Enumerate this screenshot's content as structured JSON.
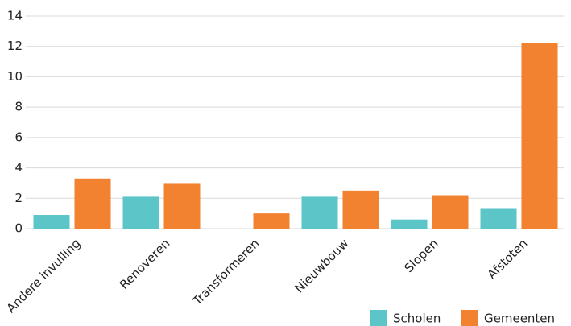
{
  "chart_data": {
    "type": "bar",
    "categories": [
      "Andere invulling",
      "Renoveren",
      "Transformeren",
      "Nieuwbouw",
      "Slopen",
      "Afstoten"
    ],
    "series": [
      {
        "name": "Scholen",
        "color": "#5bc5c8",
        "values": [
          0.9,
          2.1,
          0,
          2.1,
          0.6,
          1.3
        ]
      },
      {
        "name": "Gemeenten",
        "color": "#f28130",
        "values": [
          3.3,
          3.0,
          1.0,
          2.5,
          2.2,
          12.2
        ]
      }
    ],
    "ylim": [
      0,
      14
    ],
    "yticks": [
      0,
      2,
      4,
      6,
      8,
      10,
      12,
      14
    ],
    "grid": true,
    "legend": "bottom-right"
  }
}
